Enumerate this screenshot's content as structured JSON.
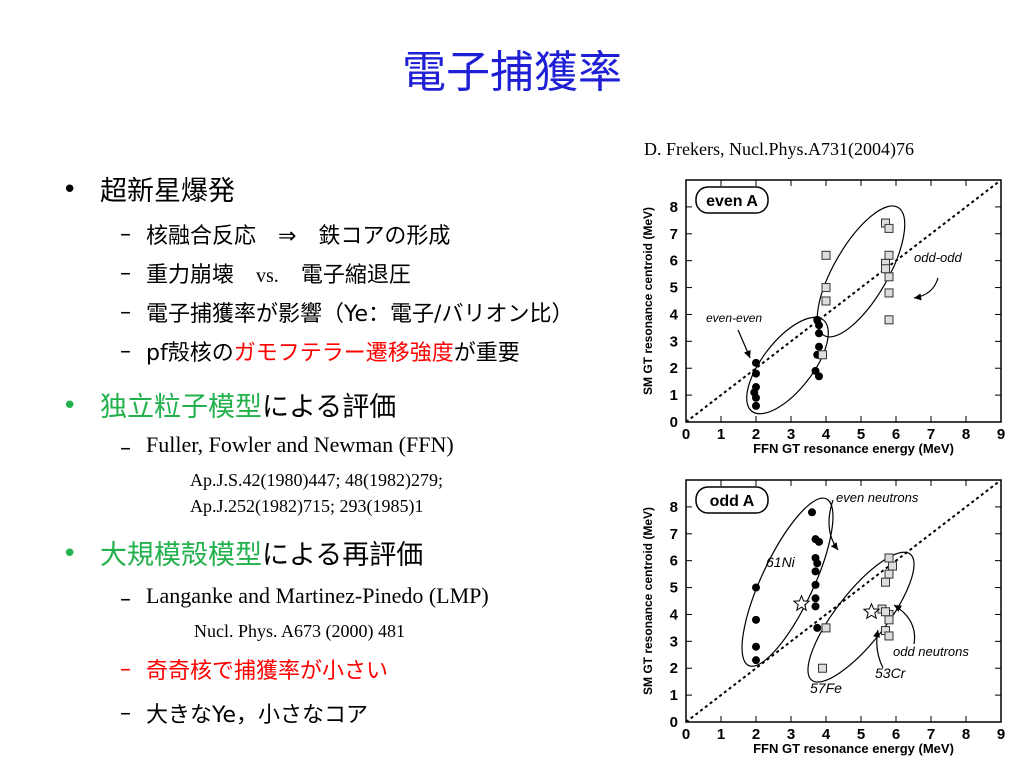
{
  "slide": {
    "title": "電子捕獲率",
    "reference": "D. Frekers, Nucl.Phys.A731(2004)76",
    "b1": {
      "text": "超新星爆発"
    },
    "b1_s1": "核融合反応　⇒　鉄コアの形成",
    "b1_s2_a": "重力崩壊　",
    "b1_s2_b": "vs.",
    "b1_s2_c": "　電子縮退圧",
    "b1_s3": "電子捕獲率が影響（Ye：電子/バリオン比）",
    "b1_s4_a": "pf殻核の",
    "b1_s4_b": "ガモフテラー遷移強度",
    "b1_s4_c": "が重要",
    "b2_a": "独立粒子模型",
    "b2_b": "による評価",
    "b2_s1": "Fuller, Fowler and Newman (FFN)",
    "b2_ref1": "Ap.J.S.42(1980)447;  48(1982)279;",
    "b2_ref2": "Ap.J.252(1982)715;  293(1985)1",
    "b3_a": "大規模殻模型",
    "b3_b": "による再評価",
    "b3_s1": "Langanke and Martinez-Pinedo (LMP)",
    "b3_ref": "Nucl. Phys. A673 (2000) 481",
    "b3_s2": "奇奇核で捕獲率が小さい",
    "b3_s3": "大きなYe，小さなコア",
    "bullet_glyph": "•",
    "dash_glyph": "–"
  },
  "colors": {
    "title": "#1f1fd6",
    "green": "#22b14c",
    "red": "#ff0000"
  },
  "chart_data": [
    {
      "type": "scatter",
      "panel_label": "even A",
      "xlabel": "FFN GT resonance energy (MeV)",
      "ylabel": "SM GT resonance centroid (MeV)",
      "xlim": [
        0,
        9
      ],
      "ylim": [
        0,
        9
      ],
      "xticks": [
        "0",
        "1",
        "2",
        "3",
        "4",
        "5",
        "6",
        "7",
        "8",
        "9"
      ],
      "yticks": [
        "0",
        "1",
        "2",
        "3",
        "4",
        "5",
        "6",
        "7",
        "8"
      ],
      "diagonal": true,
      "annotations": [
        "even-even",
        "odd-odd"
      ],
      "series": [
        {
          "name": "even-even",
          "marker": "filled-circle",
          "x": [
            2.0,
            2.0,
            1.95,
            2.0,
            2.0,
            2.0,
            3.75,
            3.8,
            3.8,
            3.75,
            3.7,
            3.8,
            3.8
          ],
          "y": [
            2.2,
            1.8,
            1.1,
            0.9,
            0.6,
            1.3,
            3.8,
            3.6,
            2.8,
            2.5,
            1.9,
            1.7,
            3.3
          ]
        },
        {
          "name": "odd-odd",
          "marker": "open-square",
          "x": [
            4.0,
            4.0,
            4.0,
            3.9,
            5.7,
            5.8,
            5.8,
            5.7,
            5.8,
            5.8,
            5.8,
            5.7
          ],
          "y": [
            6.2,
            5.0,
            4.5,
            2.5,
            7.4,
            7.2,
            6.2,
            5.9,
            5.4,
            4.8,
            3.8,
            5.7
          ]
        }
      ]
    },
    {
      "type": "scatter",
      "panel_label": "odd A",
      "xlabel": "FFN GT resonance energy (MeV)",
      "ylabel": "SM GT resonance centroid (MeV)",
      "xlim": [
        0,
        9
      ],
      "ylim": [
        0,
        9
      ],
      "xticks": [
        "0",
        "1",
        "2",
        "3",
        "4",
        "5",
        "6",
        "7",
        "8",
        "9"
      ],
      "yticks": [
        "0",
        "1",
        "2",
        "3",
        "4",
        "5",
        "6",
        "7",
        "8"
      ],
      "diagonal": true,
      "annotations": [
        "even neutrons",
        "odd neutrons",
        "61Ni",
        "57Fe",
        "53Cr"
      ],
      "series": [
        {
          "name": "even neutrons",
          "marker": "filled-circle",
          "x": [
            2.0,
            2.0,
            2.0,
            2.0,
            3.6,
            3.7,
            3.8,
            3.7,
            3.75,
            3.7,
            3.7,
            3.7,
            3.7,
            3.75
          ],
          "y": [
            5.0,
            3.8,
            2.8,
            2.3,
            7.8,
            6.8,
            6.7,
            6.1,
            5.9,
            5.6,
            5.1,
            4.6,
            4.3,
            3.5
          ]
        },
        {
          "name": "odd neutrons",
          "marker": "open-square",
          "x": [
            4.0,
            3.9,
            5.8,
            5.9,
            5.8,
            5.7,
            5.6,
            5.8,
            5.8,
            5.7,
            5.8,
            5.7
          ],
          "y": [
            3.5,
            2.0,
            6.1,
            5.8,
            5.5,
            5.2,
            4.2,
            4.0,
            3.8,
            3.4,
            3.2,
            4.1
          ]
        },
        {
          "name": "61Ni",
          "marker": "open-star",
          "x": [
            3.3
          ],
          "y": [
            4.4
          ]
        },
        {
          "name": "53Cr",
          "marker": "open-star",
          "x": [
            5.3
          ],
          "y": [
            4.1
          ]
        }
      ]
    }
  ]
}
